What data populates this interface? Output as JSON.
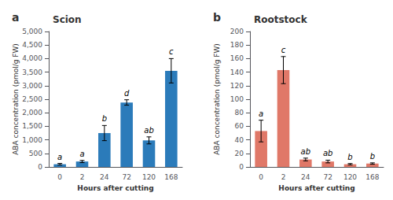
{
  "chart_data": [
    {
      "type": "bar",
      "title": "Scion",
      "panel_label": "a",
      "categories": [
        "0",
        "2",
        "24",
        "72",
        "120",
        "168"
      ],
      "values": [
        100,
        200,
        1250,
        2380,
        980,
        3550
      ],
      "errors": [
        30,
        40,
        280,
        100,
        130,
        450
      ],
      "letters": [
        "a",
        "a",
        "b",
        "d",
        "ab",
        "c"
      ],
      "color": "#2b7bba",
      "ylim": [
        0,
        5000
      ],
      "yticks": [
        0,
        500,
        {
          "value": 1000,
          "label": "1,000"
        },
        {
          "value": 1500,
          "label": "1,500"
        },
        {
          "value": 2000,
          "label": "2,000"
        },
        {
          "value": 2500,
          "label": "2,500"
        },
        {
          "value": 3000,
          "label": "3,000"
        },
        {
          "value": 3500,
          "label": "3,500"
        },
        {
          "value": 4000,
          "label": "4,000"
        },
        {
          "value": 4500,
          "label": "4,500"
        },
        {
          "value": 5000,
          "label": "5,000"
        }
      ],
      "ylabel": "ABA concentration (pmol/g FW)",
      "xlabel": "Hours after cutting",
      "grid": false
    },
    {
      "type": "bar",
      "title": "Rootstock",
      "panel_label": "b",
      "categories": [
        "0",
        "2",
        "24",
        "72",
        "120",
        "168"
      ],
      "values": [
        53,
        143,
        11,
        8,
        4,
        5
      ],
      "errors": [
        16,
        20,
        2,
        2,
        1,
        1
      ],
      "letters": [
        "a",
        "c",
        "ab",
        "ab",
        "b",
        "b"
      ],
      "color": "#e07868",
      "ylim": [
        0,
        200
      ],
      "yticks": [
        0,
        20,
        40,
        60,
        80,
        100,
        120,
        140,
        160,
        180,
        200
      ],
      "ylabel": "ABA concentration (pmol/g FW)",
      "xlabel": "Hours after cutting",
      "grid": false
    }
  ]
}
